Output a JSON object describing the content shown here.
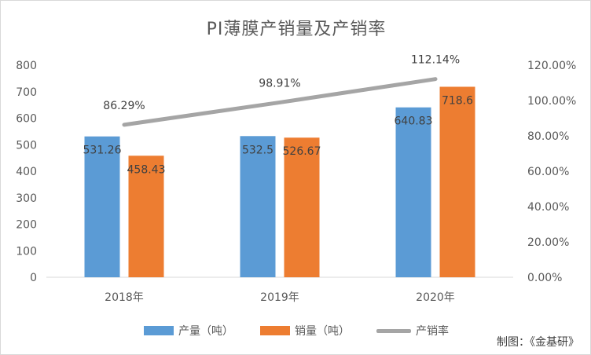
{
  "chart_data": {
    "type": "bar+line",
    "title": "PI薄膜产销量及产销率",
    "categories": [
      "2018年",
      "2019年",
      "2020年"
    ],
    "series": [
      {
        "name": "产量（吨）",
        "type": "bar",
        "axis": "left",
        "color": "#5b9bd5",
        "values": [
          531.26,
          532.5,
          640.83
        ],
        "labels": [
          "531.26",
          "532.5",
          "640.83"
        ]
      },
      {
        "name": "销量（吨）",
        "type": "bar",
        "axis": "left",
        "color": "#ed7d31",
        "values": [
          458.43,
          526.67,
          718.6
        ],
        "labels": [
          "458.43",
          "526.67",
          "718.6"
        ]
      },
      {
        "name": "产销率",
        "type": "line",
        "axis": "right",
        "color": "#a5a5a5",
        "values": [
          86.29,
          98.91,
          112.14
        ],
        "labels": [
          "86.29%",
          "98.91%",
          "112.14%"
        ]
      }
    ],
    "ylim_left": [
      0,
      800
    ],
    "ylim_right": [
      0,
      120
    ],
    "left_ticks": [
      "0",
      "100",
      "200",
      "300",
      "400",
      "500",
      "600",
      "700",
      "800"
    ],
    "right_ticks": [
      "0.00%",
      "20.00%",
      "40.00%",
      "60.00%",
      "80.00%",
      "100.00%",
      "120.00%"
    ],
    "grid": false,
    "legend_position": "bottom"
  },
  "legend": {
    "item1": "产量（吨）",
    "item2": "销量（吨）",
    "item3": "产销率"
  },
  "source_note": "制图：《金基研》",
  "colors": {
    "production": "#5b9bd5",
    "sales": "#ed7d31",
    "rate": "#a5a5a5"
  }
}
